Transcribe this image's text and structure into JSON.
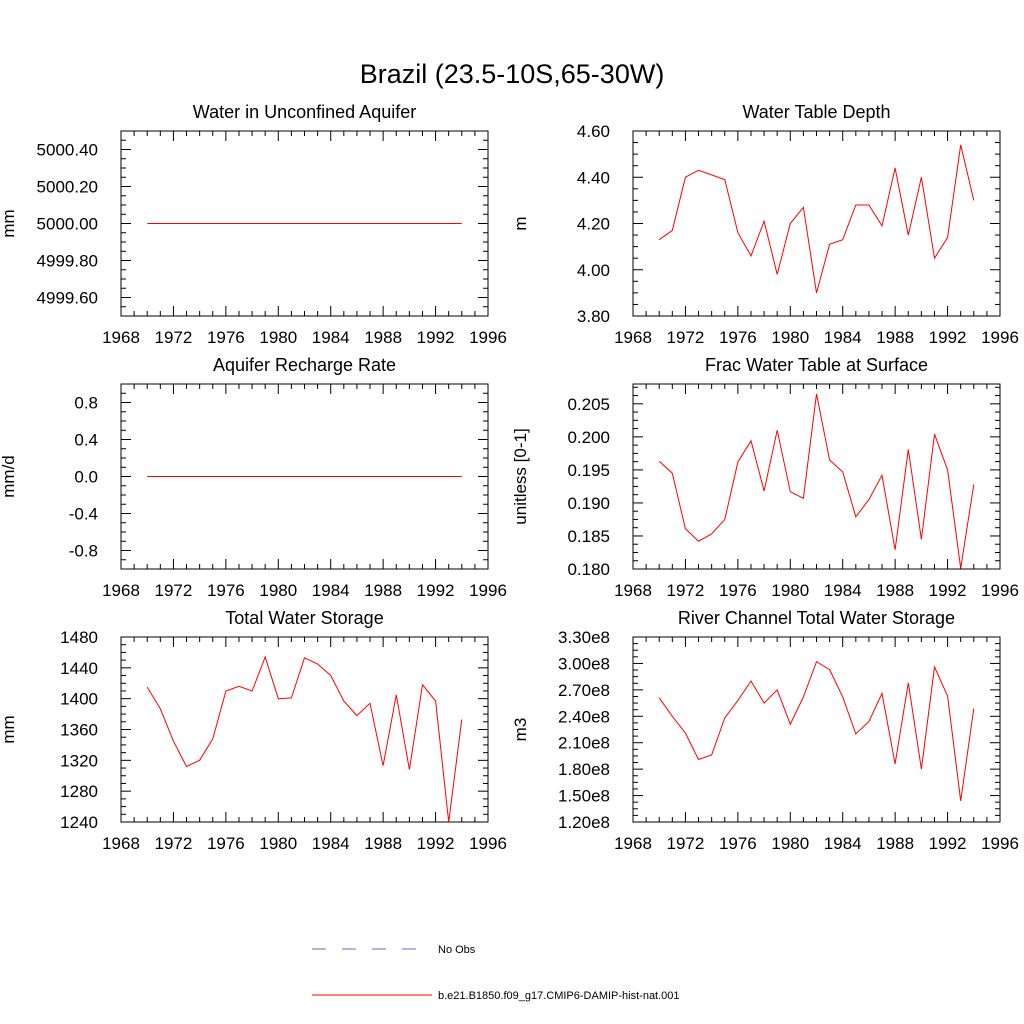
{
  "figure": {
    "title": "Brazil (23.5-10S,65-30W)",
    "series_color": "#ff0000",
    "obs_color": "#6666cc"
  },
  "legend": {
    "entries": [
      {
        "label": "No Obs",
        "style": "dashed",
        "color": "#6666cc"
      },
      {
        "label": "b.e21.B1850.f09_g17.CMIP6-DAMIP-hist-nat.001",
        "style": "solid",
        "color": "#ff0000"
      }
    ]
  },
  "chart_data": [
    {
      "type": "line",
      "title": "Water in Unconfined Aquifer",
      "ylabel": "mm",
      "xlim": [
        1968,
        1996
      ],
      "xticks": [
        1968,
        1972,
        1976,
        1980,
        1984,
        1988,
        1992,
        1996
      ],
      "ylim": [
        4999.5,
        5000.5
      ],
      "yticks": [
        4999.6,
        4999.8,
        5000.0,
        5000.2,
        5000.4
      ],
      "ytick_labels": [
        "4999.60",
        "4999.80",
        "5000.00",
        "5000.20",
        "5000.40"
      ],
      "x": [
        1970,
        1971,
        1972,
        1973,
        1974,
        1975,
        1976,
        1977,
        1978,
        1979,
        1980,
        1981,
        1982,
        1983,
        1984,
        1985,
        1986,
        1987,
        1988,
        1989,
        1990,
        1991,
        1992,
        1993,
        1994
      ],
      "series": [
        {
          "values": [
            5000,
            5000,
            5000,
            5000,
            5000,
            5000,
            5000,
            5000,
            5000,
            5000,
            5000,
            5000,
            5000,
            5000,
            5000,
            5000,
            5000,
            5000,
            5000,
            5000,
            5000,
            5000,
            5000,
            5000,
            5000
          ]
        }
      ]
    },
    {
      "type": "line",
      "title": "Water Table Depth",
      "ylabel": "m",
      "xlim": [
        1968,
        1996
      ],
      "xticks": [
        1968,
        1972,
        1976,
        1980,
        1984,
        1988,
        1992,
        1996
      ],
      "ylim": [
        3.8,
        4.6
      ],
      "yticks": [
        3.8,
        4.0,
        4.2,
        4.4,
        4.6
      ],
      "ytick_labels": [
        "3.80",
        "4.00",
        "4.20",
        "4.40",
        "4.60"
      ],
      "x": [
        1970,
        1971,
        1972,
        1973,
        1974,
        1975,
        1976,
        1977,
        1978,
        1979,
        1980,
        1981,
        1982,
        1983,
        1984,
        1985,
        1986,
        1987,
        1988,
        1989,
        1990,
        1991,
        1992,
        1993,
        1994
      ],
      "series": [
        {
          "values": [
            4.13,
            4.17,
            4.4,
            4.43,
            4.41,
            4.39,
            4.16,
            4.06,
            4.21,
            3.98,
            4.2,
            4.27,
            3.9,
            4.11,
            4.13,
            4.28,
            4.28,
            4.19,
            4.44,
            4.15,
            4.4,
            4.05,
            4.14,
            4.54,
            4.3
          ]
        }
      ]
    },
    {
      "type": "line",
      "title": "Aquifer Recharge Rate",
      "ylabel": "mm/d",
      "xlim": [
        1968,
        1996
      ],
      "xticks": [
        1968,
        1972,
        1976,
        1980,
        1984,
        1988,
        1992,
        1996
      ],
      "ylim": [
        -1.0,
        1.0
      ],
      "yticks": [
        -0.8,
        -0.4,
        0.0,
        0.4,
        0.8
      ],
      "ytick_labels": [
        "-0.8",
        "-0.4",
        "0.0",
        "0.4",
        "0.8"
      ],
      "x": [
        1970,
        1971,
        1972,
        1973,
        1974,
        1975,
        1976,
        1977,
        1978,
        1979,
        1980,
        1981,
        1982,
        1983,
        1984,
        1985,
        1986,
        1987,
        1988,
        1989,
        1990,
        1991,
        1992,
        1993,
        1994
      ],
      "series": [
        {
          "values": [
            0,
            0,
            0,
            0,
            0,
            0,
            0,
            0,
            0,
            0,
            0,
            0,
            0,
            0,
            0,
            0,
            0,
            0,
            0,
            0,
            0,
            0,
            0,
            0,
            0
          ]
        }
      ]
    },
    {
      "type": "line",
      "title": "Frac Water Table at Surface",
      "ylabel": "unitless [0-1]",
      "xlim": [
        1968,
        1996
      ],
      "xticks": [
        1968,
        1972,
        1976,
        1980,
        1984,
        1988,
        1992,
        1996
      ],
      "ylim": [
        0.18,
        0.208
      ],
      "yticks": [
        0.18,
        0.185,
        0.19,
        0.195,
        0.2,
        0.205
      ],
      "ytick_labels": [
        "0.180",
        "0.185",
        "0.190",
        "0.195",
        "0.200",
        "0.205"
      ],
      "x": [
        1970,
        1971,
        1972,
        1973,
        1974,
        1975,
        1976,
        1977,
        1978,
        1979,
        1980,
        1981,
        1982,
        1983,
        1984,
        1985,
        1986,
        1987,
        1988,
        1989,
        1990,
        1991,
        1992,
        1993,
        1994
      ],
      "series": [
        {
          "values": [
            0.1963,
            0.1945,
            0.1861,
            0.1842,
            0.1853,
            0.1875,
            0.1962,
            0.1994,
            0.1918,
            0.201,
            0.1917,
            0.1907,
            0.2065,
            0.1965,
            0.1947,
            0.1879,
            0.1905,
            0.1942,
            0.1829,
            0.1981,
            0.1845,
            0.2004,
            0.195,
            0.1801,
            0.1928
          ]
        }
      ]
    },
    {
      "type": "line",
      "title": "Total Water Storage",
      "ylabel": "mm",
      "xlim": [
        1968,
        1996
      ],
      "xticks": [
        1968,
        1972,
        1976,
        1980,
        1984,
        1988,
        1992,
        1996
      ],
      "ylim": [
        1240,
        1480
      ],
      "yticks": [
        1240,
        1280,
        1320,
        1360,
        1400,
        1440,
        1480
      ],
      "ytick_labels": [
        "1240",
        "1280",
        "1320",
        "1360",
        "1400",
        "1440",
        "1480"
      ],
      "x": [
        1970,
        1971,
        1972,
        1973,
        1974,
        1975,
        1976,
        1977,
        1978,
        1979,
        1980,
        1981,
        1982,
        1983,
        1984,
        1985,
        1986,
        1987,
        1988,
        1989,
        1990,
        1991,
        1992,
        1993,
        1994
      ],
      "series": [
        {
          "values": [
            1415,
            1387,
            1345,
            1312,
            1320,
            1348,
            1410,
            1416,
            1410,
            1454,
            1400,
            1401,
            1453,
            1445,
            1430,
            1397,
            1378,
            1394,
            1313,
            1405,
            1308,
            1418,
            1397,
            1240,
            1373
          ]
        }
      ]
    },
    {
      "type": "line",
      "title": "River Channel Total Water Storage",
      "ylabel": "m3",
      "xlim": [
        1968,
        1996
      ],
      "xticks": [
        1968,
        1972,
        1976,
        1980,
        1984,
        1988,
        1992,
        1996
      ],
      "ylim": [
        120000000.0,
        330000000.0
      ],
      "yticks": [
        120000000.0,
        150000000.0,
        180000000.0,
        210000000.0,
        240000000.0,
        270000000.0,
        300000000.0,
        330000000.0
      ],
      "ytick_labels": [
        "1.20e8",
        "1.50e8",
        "1.80e8",
        "2.10e8",
        "2.40e8",
        "2.70e8",
        "3.00e8",
        "3.30e8"
      ],
      "x": [
        1970,
        1971,
        1972,
        1973,
        1974,
        1975,
        1976,
        1977,
        1978,
        1979,
        1980,
        1981,
        1982,
        1983,
        1984,
        1985,
        1986,
        1987,
        1988,
        1989,
        1990,
        1991,
        1992,
        1993,
        1994
      ],
      "series": [
        {
          "values": [
            261000000.0,
            240000000.0,
            221000000.0,
            191000000.0,
            196000000.0,
            238000000.0,
            258000000.0,
            280000000.0,
            255000000.0,
            270000000.0,
            231000000.0,
            262000000.0,
            302000000.0,
            293000000.0,
            262000000.0,
            220000000.0,
            234000000.0,
            266000000.0,
            186000000.0,
            278000000.0,
            180000000.0,
            296000000.0,
            263000000.0,
            144000000.0,
            249000000.0
          ]
        }
      ]
    }
  ]
}
